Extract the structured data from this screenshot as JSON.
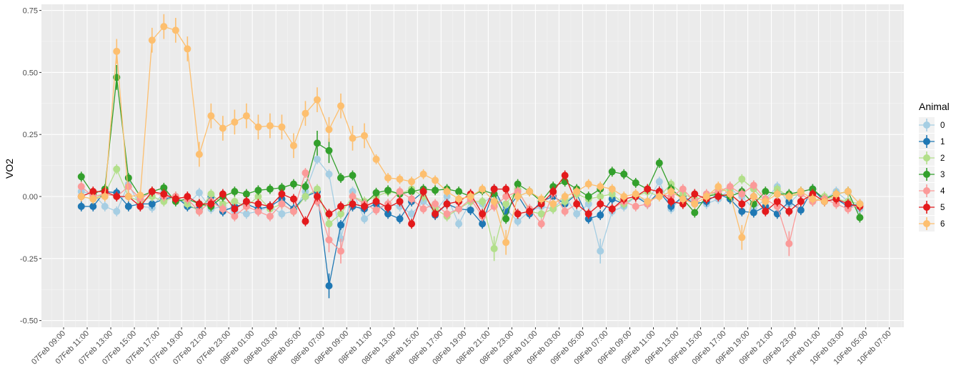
{
  "chart_data": {
    "type": "line",
    "title": "",
    "xlabel": "",
    "ylabel": "VO2",
    "ylim": [
      -0.53,
      0.77
    ],
    "yticks": [
      -0.5,
      -0.25,
      0,
      0.25,
      0.5,
      0.75
    ],
    "ytick_labels": [
      "-0.50",
      "-0.25",
      "0.00",
      "0.25",
      "0.50",
      "0.75"
    ],
    "x_unit": "hours since 07Feb 00:00",
    "x_start_hour": 10.5,
    "x_step_hours": 1,
    "xtick_start_hour": 9,
    "xtick_step_hours": 2,
    "xtick_labels": [
      "07Feb 09:00",
      "07Feb 11:00",
      "07Feb 13:00",
      "07Feb 15:00",
      "07Feb 17:00",
      "07Feb 19:00",
      "07Feb 21:00",
      "07Feb 23:00",
      "08Feb 01:00",
      "08Feb 03:00",
      "08Feb 05:00",
      "08Feb 07:00",
      "08Feb 09:00",
      "08Feb 11:00",
      "08Feb 13:00",
      "08Feb 15:00",
      "08Feb 17:00",
      "08Feb 19:00",
      "08Feb 21:00",
      "08Feb 23:00",
      "09Feb 01:00",
      "09Feb 03:00",
      "09Feb 05:00",
      "09Feb 07:00",
      "09Feb 09:00",
      "09Feb 11:00",
      "09Feb 13:00",
      "09Feb 15:00",
      "09Feb 17:00",
      "09Feb 19:00",
      "09Feb 21:00",
      "09Feb 23:00",
      "10Feb 01:00",
      "10Feb 03:00",
      "10Feb 05:00",
      "10Feb 07:00"
    ],
    "grid": true,
    "error_bar_halfwidth": 0.02,
    "legend": {
      "title": "Animal",
      "position": "right"
    },
    "series": [
      {
        "name": "0",
        "color": "#A6CEE3",
        "values": [
          0.02,
          0.01,
          -0.04,
          -0.06,
          0.05,
          -0.04,
          -0.045,
          0.02,
          -0.01,
          -0.03,
          0.015,
          -0.05,
          -0.04,
          -0.06,
          -0.07,
          -0.06,
          -0.04,
          -0.07,
          -0.06,
          0.02,
          0.15,
          0.09,
          -0.17,
          0.02,
          -0.09,
          -0.05,
          -0.03,
          -0.04,
          -0.07,
          -0.02,
          -0.06,
          0.0,
          -0.11,
          -0.02,
          -0.03,
          0.01,
          -0.05,
          -0.1,
          -0.06,
          -0.04,
          -0.05,
          0.0,
          -0.07,
          -0.03,
          -0.22,
          -0.06,
          -0.04,
          0.0,
          -0.02,
          0.06,
          -0.05,
          0.0,
          -0.02,
          -0.03,
          -0.01,
          0.03,
          0.0,
          -0.05,
          -0.01,
          0.04,
          -0.03,
          0.02,
          0.03,
          -0.01,
          0.02,
          -0.02,
          -0.05
        ]
      },
      {
        "name": "1",
        "color": "#1F78B4",
        "values": [
          -0.04,
          -0.04,
          0.02,
          0.015,
          -0.04,
          -0.03,
          -0.03,
          -0.01,
          0.0,
          -0.04,
          -0.05,
          0.0,
          -0.06,
          -0.04,
          -0.03,
          -0.05,
          -0.04,
          -0.01,
          -0.05,
          0.0,
          0.02,
          -0.36,
          -0.115,
          -0.04,
          -0.05,
          -0.03,
          -0.07,
          -0.09,
          -0.02,
          0.02,
          -0.075,
          -0.03,
          -0.05,
          -0.055,
          -0.11,
          0.03,
          -0.06,
          0.005,
          -0.07,
          -0.02,
          0.0,
          -0.03,
          0.01,
          -0.09,
          -0.075,
          -0.01,
          -0.03,
          0.0,
          -0.03,
          0.02,
          -0.04,
          0.0,
          -0.03,
          -0.02,
          0.01,
          -0.01,
          -0.06,
          -0.065,
          -0.04,
          -0.07,
          -0.02,
          -0.055,
          0.03,
          -0.02,
          -0.01,
          -0.04,
          -0.03
        ]
      },
      {
        "name": "2",
        "color": "#B2DF8A",
        "values": [
          0.0,
          -0.01,
          0.01,
          0.11,
          0.0,
          -0.02,
          0.0,
          -0.02,
          0.0,
          -0.03,
          -0.06,
          0.01,
          -0.03,
          -0.02,
          -0.04,
          0.0,
          -0.05,
          -0.03,
          -0.06,
          0.0,
          0.03,
          -0.11,
          -0.07,
          0.0,
          -0.02,
          0.0,
          0.02,
          0.01,
          0.03,
          0.0,
          -0.05,
          -0.08,
          -0.05,
          -0.02,
          -0.02,
          -0.21,
          -0.03,
          0.03,
          -0.06,
          -0.07,
          -0.05,
          -0.02,
          0.01,
          -0.01,
          0.0,
          0.01,
          -0.03,
          0.0,
          0.02,
          0.0,
          0.05,
          0.01,
          -0.01,
          0.0,
          0.02,
          0.03,
          0.07,
          0.03,
          -0.02,
          0.03,
          0.0,
          0.01,
          -0.02,
          0.0,
          -0.01,
          -0.02,
          -0.03
        ]
      },
      {
        "name": "3",
        "color": "#33A02C",
        "values": [
          0.08,
          0.01,
          0.03,
          0.48,
          0.075,
          0.0,
          0.02,
          0.035,
          -0.02,
          -0.01,
          -0.03,
          -0.04,
          0.0,
          0.02,
          0.01,
          0.025,
          0.03,
          0.035,
          0.05,
          0.04,
          0.215,
          0.185,
          0.075,
          0.085,
          -0.03,
          0.015,
          0.025,
          0.01,
          0.02,
          0.03,
          0.025,
          0.03,
          0.02,
          0.0,
          0.025,
          0.01,
          -0.09,
          0.05,
          0.02,
          -0.02,
          0.04,
          0.06,
          0.03,
          0.0,
          0.03,
          0.1,
          0.09,
          0.055,
          0.03,
          0.135,
          0.03,
          -0.01,
          -0.065,
          0.0,
          0.01,
          0.0,
          0.02,
          -0.03,
          0.02,
          0.01,
          0.01,
          0.02,
          0.03,
          -0.01,
          0.01,
          0.02,
          -0.085
        ]
      },
      {
        "name": "4",
        "color": "#FB9A99",
        "values": [
          0.04,
          0.0,
          0.01,
          0.0,
          0.04,
          -0.01,
          0.02,
          0.0,
          0.0,
          -0.01,
          -0.06,
          -0.02,
          -0.05,
          -0.08,
          -0.04,
          -0.06,
          -0.08,
          -0.03,
          -0.06,
          0.095,
          -0.02,
          -0.175,
          -0.22,
          0.0,
          -0.03,
          -0.055,
          -0.03,
          0.02,
          -0.01,
          -0.05,
          -0.03,
          -0.07,
          -0.05,
          -0.01,
          -0.08,
          -0.04,
          0.0,
          0.02,
          -0.05,
          -0.11,
          0.015,
          -0.06,
          -0.03,
          -0.07,
          -0.03,
          -0.05,
          -0.02,
          -0.04,
          -0.03,
          0.01,
          0.0,
          0.03,
          -0.02,
          0.01,
          0.02,
          0.04,
          0.01,
          0.045,
          -0.01,
          -0.04,
          -0.19,
          0.01,
          -0.02,
          -0.01,
          -0.03,
          -0.05,
          -0.03
        ]
      },
      {
        "name": "5",
        "color": "#E31A1C",
        "values": [
          0.0,
          0.02,
          0.02,
          0.0,
          0.0,
          -0.04,
          0.02,
          0.01,
          -0.01,
          0.0,
          -0.03,
          -0.03,
          0.01,
          -0.05,
          -0.02,
          -0.03,
          -0.04,
          0.01,
          -0.01,
          -0.1,
          0.0,
          -0.07,
          -0.04,
          -0.03,
          -0.04,
          -0.02,
          -0.045,
          -0.02,
          -0.11,
          0.02,
          -0.07,
          -0.03,
          -0.02,
          0.01,
          -0.07,
          0.03,
          0.03,
          -0.07,
          -0.06,
          -0.03,
          0.02,
          0.085,
          -0.03,
          -0.07,
          -0.03,
          -0.05,
          -0.01,
          0.0,
          0.03,
          0.02,
          -0.02,
          -0.03,
          0.01,
          -0.01,
          0.0,
          0.01,
          -0.03,
          0.0,
          -0.06,
          -0.02,
          -0.06,
          -0.02,
          0.01,
          -0.02,
          -0.01,
          -0.03,
          -0.04
        ]
      },
      {
        "name": "6",
        "color": "#FDBF6F",
        "values": [
          0.0,
          -0.01,
          0.0,
          0.585,
          0.0,
          0.005,
          0.63,
          0.685,
          0.67,
          0.595,
          0.17,
          0.325,
          0.275,
          0.3,
          0.325,
          0.28,
          0.285,
          0.28,
          0.205,
          0.335,
          0.39,
          0.27,
          0.365,
          0.235,
          0.245,
          0.15,
          0.075,
          0.07,
          0.06,
          0.09,
          0.065,
          0.02,
          -0.01,
          0.0,
          0.03,
          -0.02,
          -0.185,
          0.0,
          0.02,
          -0.01,
          -0.03,
          0.0,
          0.02,
          0.05,
          0.04,
          0.03,
          0.0,
          0.01,
          -0.02,
          0.0,
          0.02,
          -0.01,
          -0.03,
          0.0,
          0.04,
          0.01,
          -0.165,
          0.0,
          -0.02,
          0.01,
          0.0,
          0.02,
          -0.01,
          -0.02,
          0.01,
          0.02,
          -0.03
        ]
      }
    ]
  }
}
